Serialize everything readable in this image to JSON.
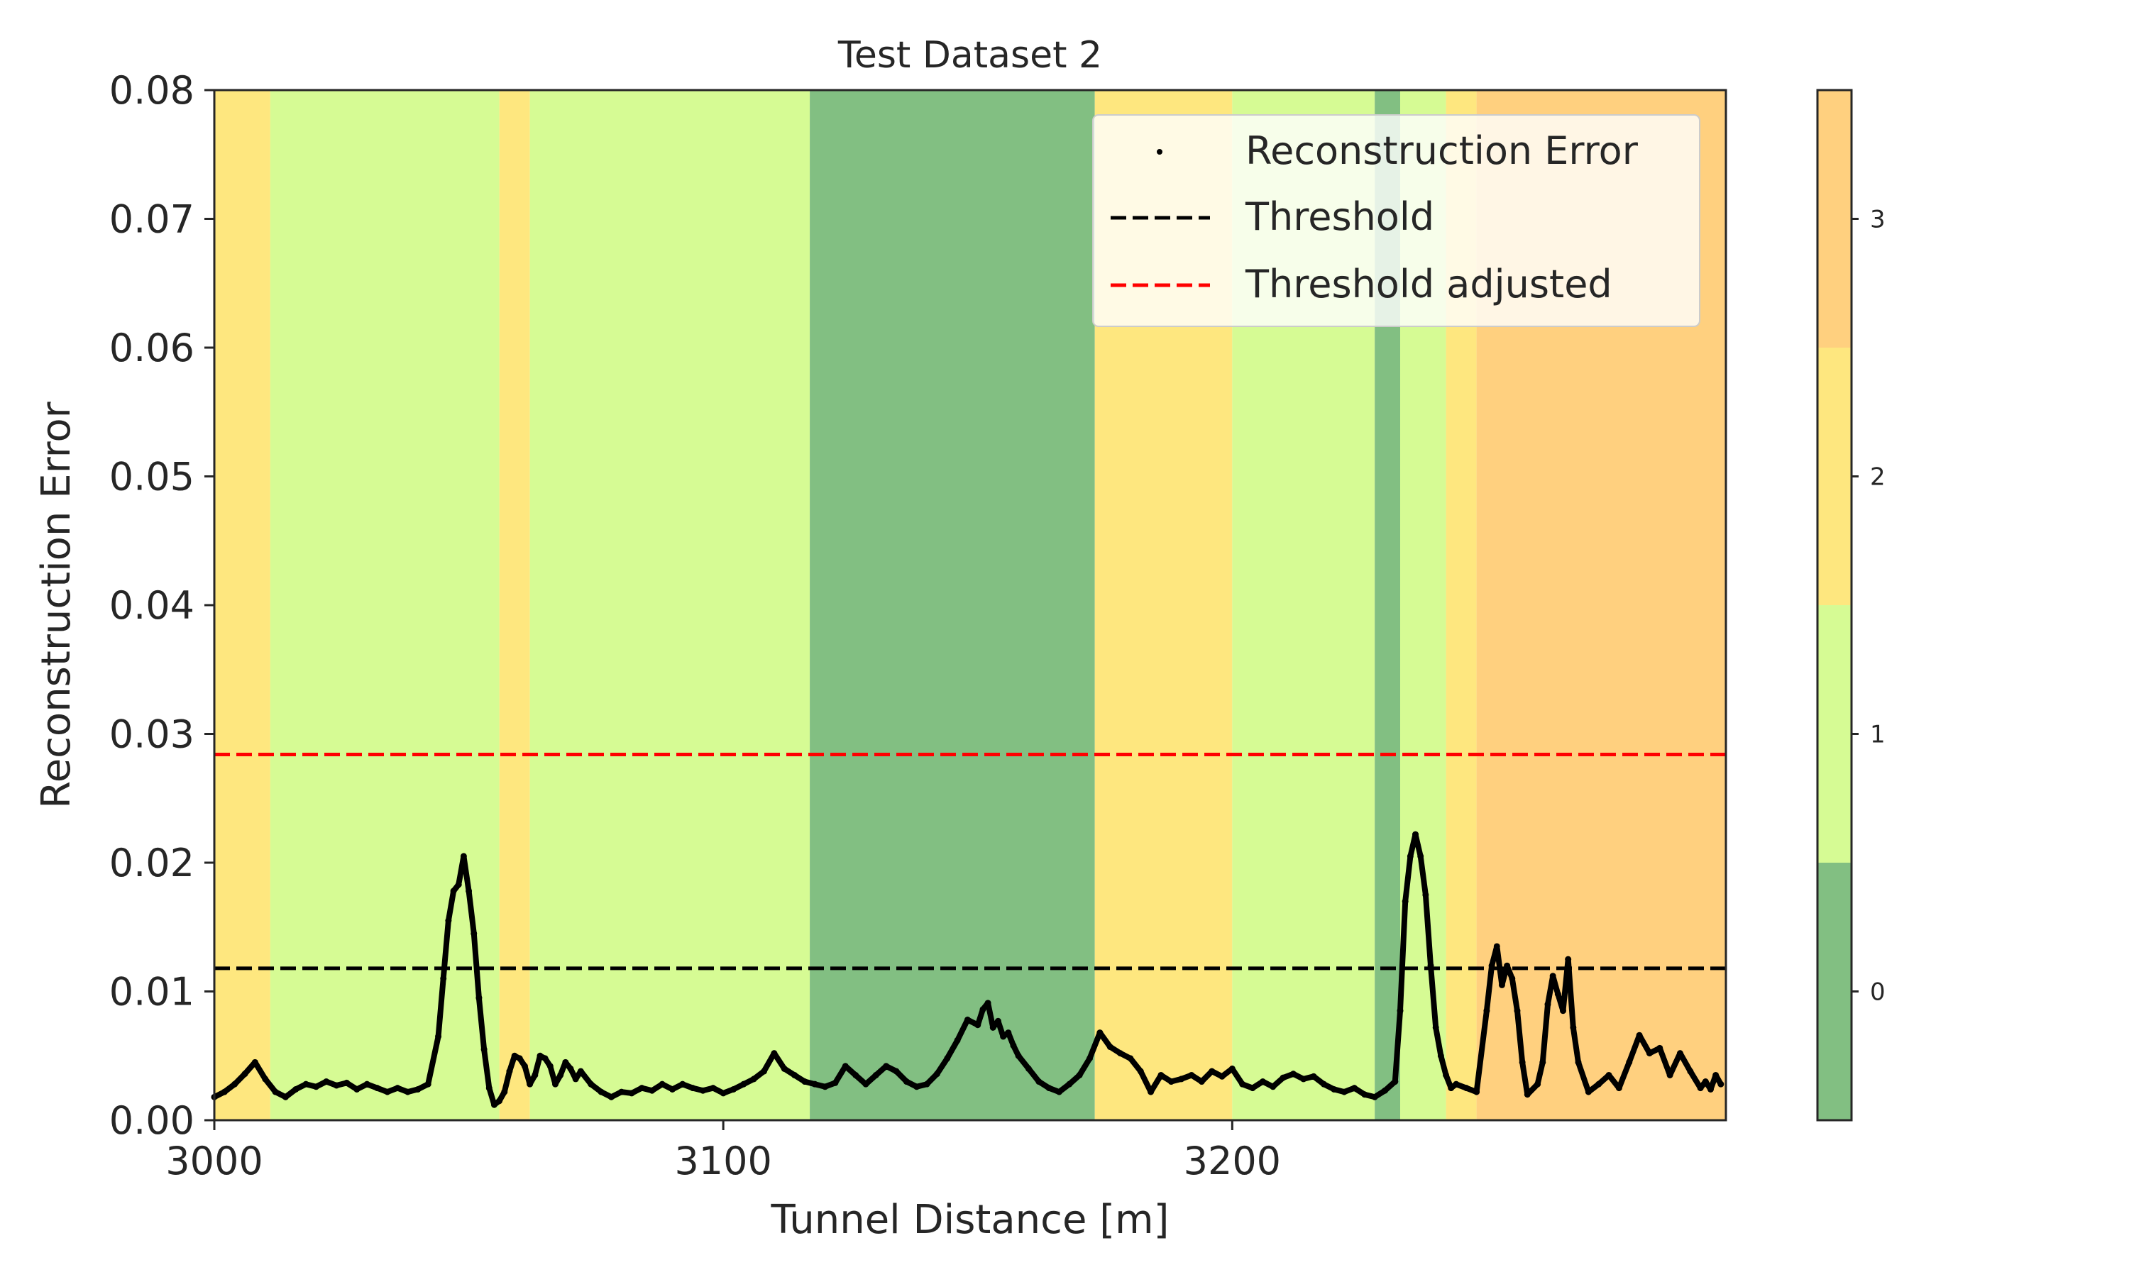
{
  "chart_data": {
    "type": "scatter",
    "title": "Test Dataset 2",
    "xlabel": "Tunnel Distance [m]",
    "ylabel": "Reconstruction Error",
    "xlim": [
      3000,
      3297
    ],
    "ylim": [
      0,
      0.08
    ],
    "xticks": [
      "3000",
      "3100",
      "3200"
    ],
    "xtick_values": [
      3000,
      3100,
      3200
    ],
    "yticks": [
      "0.00",
      "0.01",
      "0.02",
      "0.03",
      "0.04",
      "0.05",
      "0.06",
      "0.07",
      "0.08"
    ],
    "ytick_values": [
      0,
      0.01,
      0.02,
      0.03,
      0.04,
      0.05,
      0.06,
      0.07,
      0.08
    ],
    "grid": false,
    "legend_position": "top-right",
    "legend": [
      {
        "label": "Reconstruction Error",
        "style": "dots",
        "color": "#000000"
      },
      {
        "label": "Threshold",
        "style": "dashed",
        "color": "#000000"
      },
      {
        "label": "Threshold adjusted",
        "style": "dashed",
        "color": "#ff0000"
      }
    ],
    "thresholds": [
      {
        "name": "Threshold",
        "value": 0.0118,
        "color": "#000000"
      },
      {
        "name": "Threshold adjusted",
        "value": 0.0284,
        "color": "#ff0000"
      }
    ],
    "class_colors": {
      "0": "#82bf82",
      "1": "#d6fb94",
      "2": "#fee77f",
      "3": "#ffd07f"
    },
    "background_bands": [
      {
        "x0": 3000,
        "x1": 3011,
        "class": 2
      },
      {
        "x0": 3011,
        "x1": 3056,
        "class": 1
      },
      {
        "x0": 3056,
        "x1": 3062,
        "class": 2
      },
      {
        "x0": 3062,
        "x1": 3117,
        "class": 1
      },
      {
        "x0": 3117,
        "x1": 3173,
        "class": 0
      },
      {
        "x0": 3173,
        "x1": 3200,
        "class": 2
      },
      {
        "x0": 3200,
        "x1": 3228,
        "class": 1
      },
      {
        "x0": 3228,
        "x1": 3233,
        "class": 0
      },
      {
        "x0": 3233,
        "x1": 3242,
        "class": 1
      },
      {
        "x0": 3242,
        "x1": 3248,
        "class": 2
      },
      {
        "x0": 3248,
        "x1": 3297,
        "class": 3
      }
    ],
    "colorbar": {
      "ticks": [
        "0",
        "1",
        "2",
        "3"
      ],
      "tick_values": [
        0,
        1,
        2,
        3
      ],
      "range": [
        -0.5,
        3.5
      ]
    },
    "series": [
      {
        "name": "Reconstruction Error",
        "x": [
          3000,
          3002,
          3004,
          3006,
          3008,
          3010,
          3012,
          3014,
          3016,
          3018,
          3020,
          3022,
          3024,
          3026,
          3028,
          3030,
          3032,
          3034,
          3036,
          3038,
          3040,
          3042,
          3044,
          3045,
          3046,
          3047,
          3048,
          3049,
          3050,
          3051,
          3052,
          3053,
          3054,
          3055,
          3056,
          3057,
          3058,
          3059,
          3060,
          3061,
          3062,
          3063,
          3064,
          3065,
          3066,
          3067,
          3068,
          3069,
          3070,
          3071,
          3072,
          3074,
          3076,
          3078,
          3080,
          3082,
          3084,
          3086,
          3088,
          3090,
          3092,
          3094,
          3096,
          3098,
          3100,
          3102,
          3104,
          3106,
          3108,
          3110,
          3112,
          3114,
          3116,
          3118,
          3120,
          3122,
          3124,
          3126,
          3128,
          3130,
          3132,
          3134,
          3136,
          3138,
          3140,
          3142,
          3144,
          3146,
          3148,
          3150,
          3151,
          3152,
          3153,
          3154,
          3155,
          3156,
          3157,
          3158,
          3160,
          3162,
          3164,
          3166,
          3168,
          3170,
          3172,
          3174,
          3176,
          3178,
          3180,
          3182,
          3184,
          3186,
          3188,
          3190,
          3192,
          3194,
          3196,
          3198,
          3200,
          3202,
          3204,
          3206,
          3208,
          3210,
          3212,
          3214,
          3216,
          3218,
          3220,
          3222,
          3224,
          3226,
          3228,
          3230,
          3232,
          3233,
          3234,
          3235,
          3236,
          3237,
          3238,
          3239,
          3240,
          3241,
          3242,
          3243,
          3244,
          3246,
          3248,
          3250,
          3251,
          3252,
          3253,
          3254,
          3255,
          3256,
          3257,
          3258,
          3260,
          3261,
          3262,
          3263,
          3264,
          3265,
          3266,
          3267,
          3268,
          3270,
          3272,
          3274,
          3276,
          3278,
          3280,
          3282,
          3284,
          3286,
          3288,
          3290,
          3292,
          3293,
          3294,
          3295,
          3296
        ],
        "y": [
          0.0018,
          0.0022,
          0.0028,
          0.0036,
          0.0045,
          0.0032,
          0.0022,
          0.0018,
          0.0024,
          0.0028,
          0.0026,
          0.003,
          0.0027,
          0.0029,
          0.0024,
          0.0028,
          0.0025,
          0.0022,
          0.0025,
          0.0022,
          0.0024,
          0.0028,
          0.0065,
          0.011,
          0.0155,
          0.0178,
          0.0183,
          0.0205,
          0.0178,
          0.0145,
          0.0095,
          0.0055,
          0.0025,
          0.0012,
          0.0015,
          0.0022,
          0.0038,
          0.005,
          0.0048,
          0.0042,
          0.0028,
          0.0035,
          0.005,
          0.0048,
          0.0042,
          0.0028,
          0.0035,
          0.0045,
          0.004,
          0.0032,
          0.0038,
          0.0028,
          0.0022,
          0.0018,
          0.0022,
          0.0021,
          0.0025,
          0.0023,
          0.0028,
          0.0024,
          0.0028,
          0.0025,
          0.0023,
          0.0025,
          0.0021,
          0.0024,
          0.0028,
          0.0032,
          0.0038,
          0.0052,
          0.004,
          0.0035,
          0.003,
          0.0028,
          0.0026,
          0.0029,
          0.0042,
          0.0035,
          0.0028,
          0.0035,
          0.0042,
          0.0038,
          0.003,
          0.0026,
          0.0028,
          0.0036,
          0.0048,
          0.0062,
          0.0078,
          0.0074,
          0.0086,
          0.0091,
          0.0072,
          0.0077,
          0.0065,
          0.0068,
          0.0058,
          0.005,
          0.004,
          0.003,
          0.0025,
          0.0022,
          0.0028,
          0.0035,
          0.0048,
          0.0068,
          0.0057,
          0.0052,
          0.0048,
          0.0038,
          0.0022,
          0.0035,
          0.003,
          0.0032,
          0.0035,
          0.003,
          0.0038,
          0.0034,
          0.004,
          0.0028,
          0.0025,
          0.003,
          0.0026,
          0.0033,
          0.0036,
          0.0032,
          0.0034,
          0.0028,
          0.0024,
          0.0022,
          0.0025,
          0.002,
          0.0018,
          0.0023,
          0.003,
          0.0085,
          0.017,
          0.0205,
          0.0222,
          0.0205,
          0.0175,
          0.012,
          0.0072,
          0.005,
          0.0035,
          0.0025,
          0.0028,
          0.0025,
          0.0022,
          0.0085,
          0.012,
          0.0135,
          0.0105,
          0.012,
          0.011,
          0.0085,
          0.0045,
          0.002,
          0.0028,
          0.0045,
          0.009,
          0.0112,
          0.0098,
          0.0085,
          0.0125,
          0.0072,
          0.0045,
          0.0022,
          0.0028,
          0.0035,
          0.0025,
          0.0045,
          0.0066,
          0.0052,
          0.0056,
          0.0035,
          0.0052,
          0.0038,
          0.0025,
          0.003,
          0.0024,
          0.0035,
          0.0028
        ]
      }
    ]
  }
}
